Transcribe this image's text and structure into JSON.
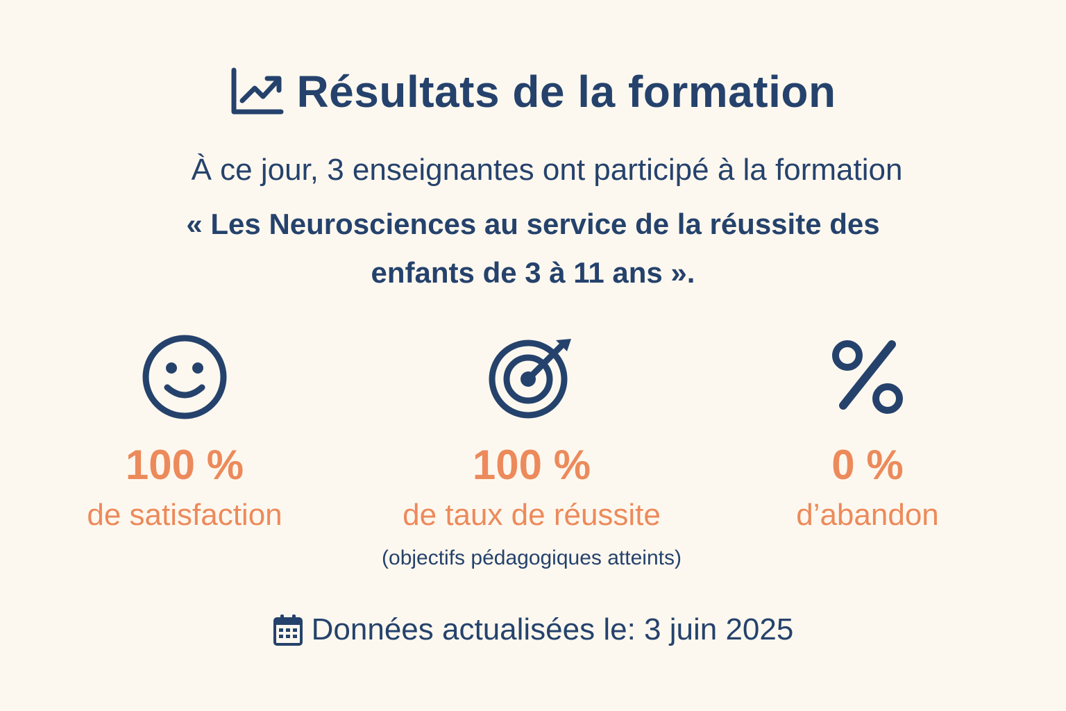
{
  "header": {
    "icon": "trend-chart-icon",
    "title": "Résultats de la formation"
  },
  "intro": {
    "text": "À ce jour, 3 enseignantes ont participé à la formation",
    "course_title": "« Les Neurosciences au service de la réussite des enfants de 3 à 11 ans »."
  },
  "stats": [
    {
      "icon": "smiley-icon",
      "value": "100 %",
      "label": "de satisfaction",
      "note": ""
    },
    {
      "icon": "target-icon",
      "value": "100 %",
      "label": "de taux de réussite",
      "note": "(objectifs pédagogiques atteints)"
    },
    {
      "icon": "percent-icon",
      "value": "0 %",
      "label": "d’abandon",
      "note": ""
    }
  ],
  "footer": {
    "icon": "calendar-icon",
    "text": "Données actualisées le: 3 juin 2025"
  },
  "colors": {
    "background": "#fdf8ef",
    "navy": "#25426c",
    "accent": "#ec8a5b"
  }
}
